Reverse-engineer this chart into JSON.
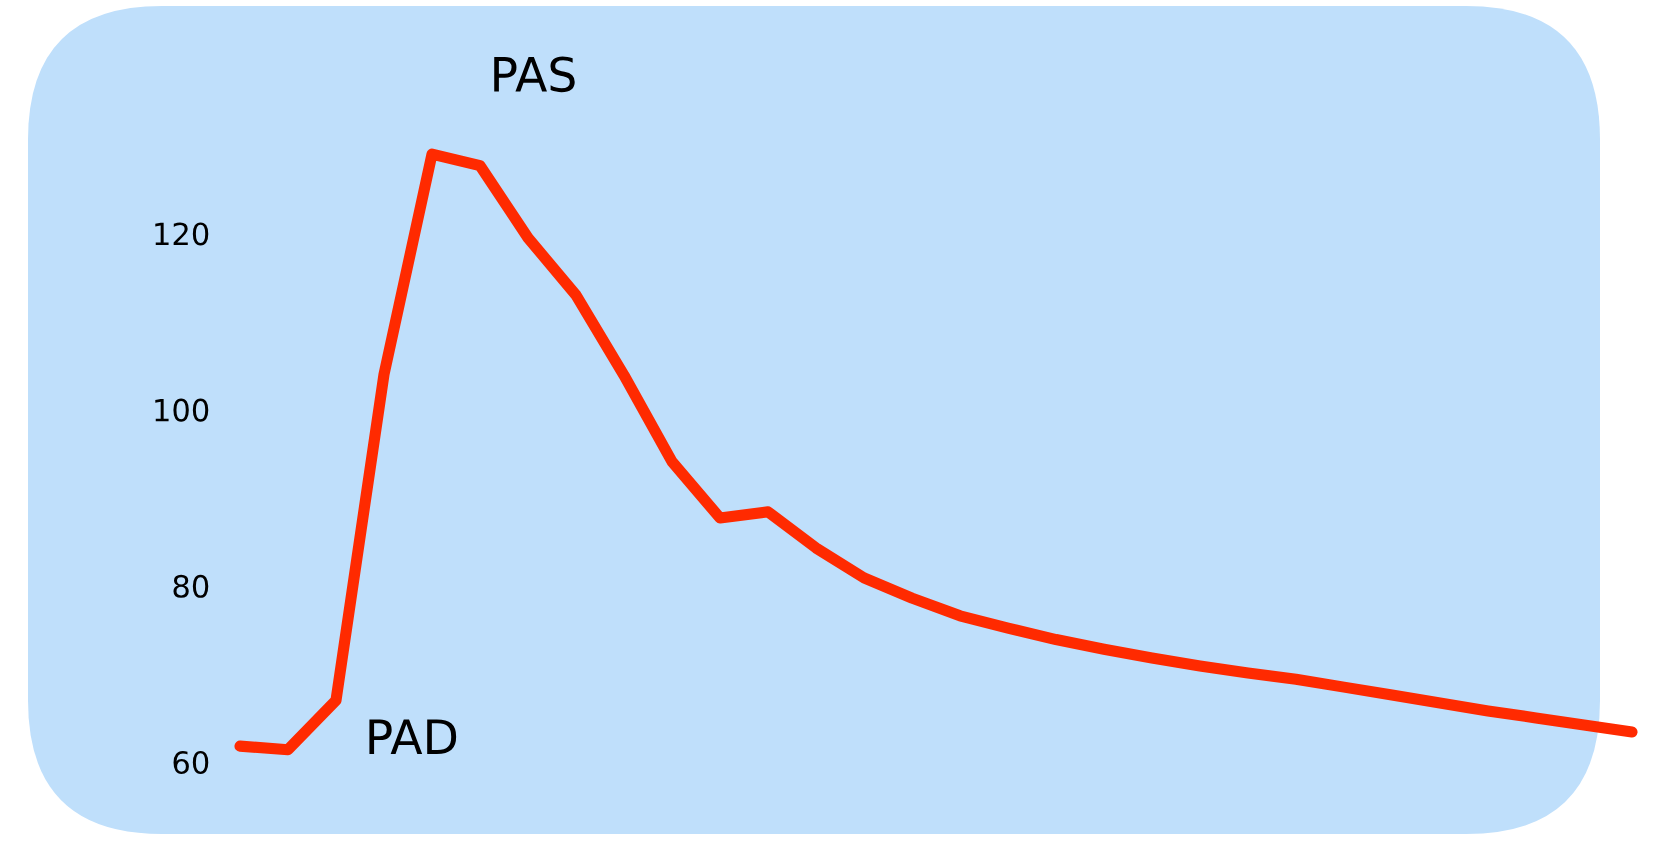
{
  "chart_data": {
    "type": "line",
    "categories": [
      null,
      null,
      null,
      null,
      null,
      null,
      null,
      null,
      null,
      null,
      null,
      null,
      null,
      null,
      null,
      null,
      null,
      null,
      null,
      null,
      null,
      null,
      null,
      null,
      null,
      null,
      null,
      null,
      null,
      null
    ],
    "series": [
      {
        "color": "#ff2a00",
        "values": [
          61.8,
          61.4,
          67,
          104,
          129,
          127.7,
          119.5,
          113,
          103.9,
          94.1,
          87.7,
          88.4,
          84.3,
          80.9,
          78.6,
          76.6,
          75.2,
          73.9,
          72.8,
          71.8,
          70.9,
          70.1,
          69.4,
          68.5,
          67.6,
          66.7,
          65.8,
          65,
          64.2,
          63.4
        ]
      }
    ],
    "ylim": [
      60,
      146.5
    ],
    "yticks": [
      60,
      80,
      100,
      120
    ],
    "tick_labels": "y",
    "grid": false,
    "annotations": [
      "PAS",
      "PAD"
    ]
  }
}
